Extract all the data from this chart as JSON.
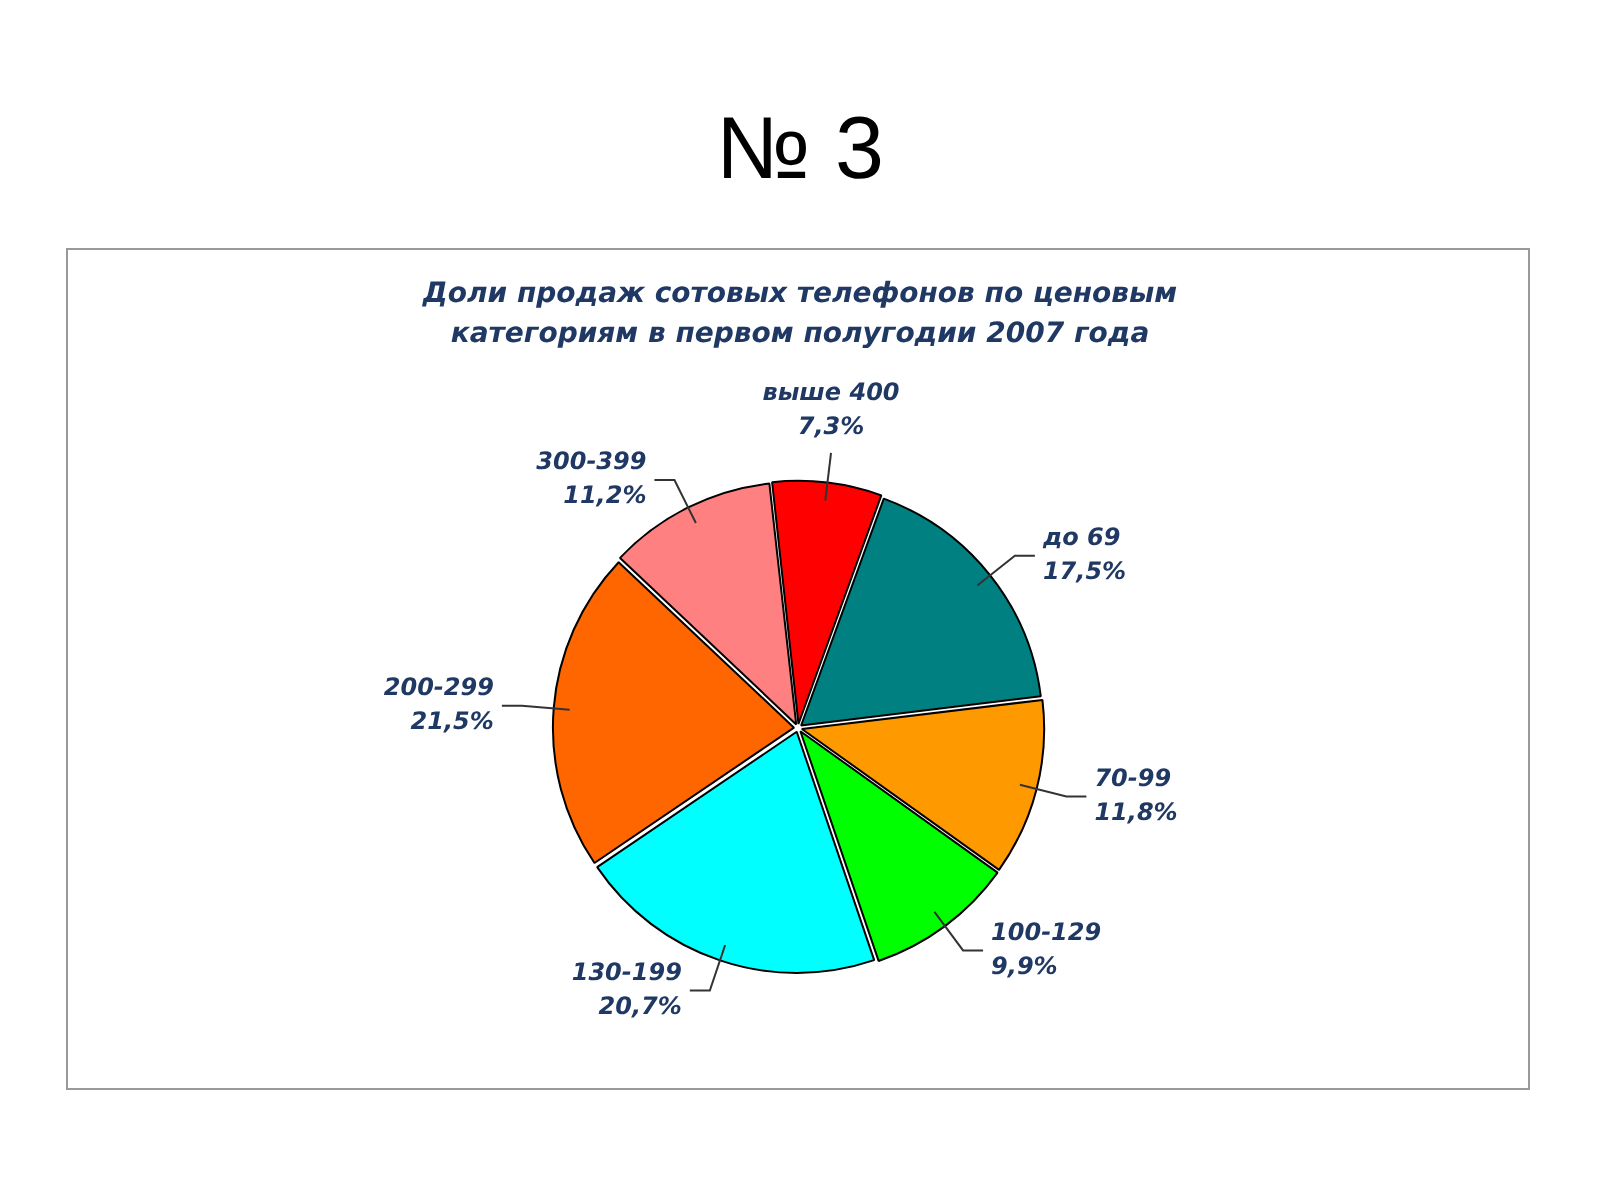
{
  "chart_data": {
    "type": "pie",
    "title": "Доли продаж сотовых телефонов по ценовым категориям в первом полугодии 2007 года",
    "annotations": [
      "№ 3"
    ],
    "categories": [
      "до 69",
      "70-99",
      "100-129",
      "130-199",
      "200-299",
      "300-399",
      "выше 400"
    ],
    "values": [
      17.5,
      11.8,
      9.9,
      20.7,
      21.5,
      11.2,
      7.3
    ],
    "value_labels": [
      "17,5%",
      "11,8%",
      "9,9%",
      "20,7%",
      "21,5%",
      "11,2%",
      "7,3%"
    ],
    "colors": [
      "#008080",
      "#ff9900",
      "#00ff00",
      "#00ffff",
      "#ff6600",
      "#ff8080",
      "#ff0000"
    ]
  }
}
